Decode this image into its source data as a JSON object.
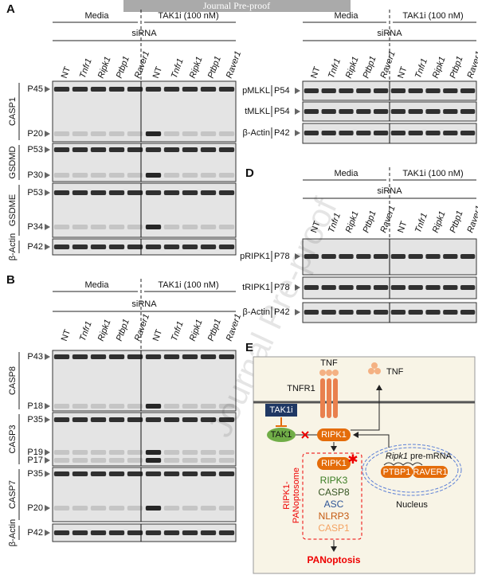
{
  "banner": "Journal Pre-proof",
  "watermark": "Journal Pre-proof",
  "lanes": [
    "NT",
    "Tnfr1",
    "Ripk1",
    "Ptbp1",
    "Raver1"
  ],
  "conditions": [
    "Media",
    "TAK1i (100 nM)"
  ],
  "treatment": "siRNA",
  "panels": [
    {
      "letter": "A",
      "blots": [
        {
          "protein": "CASP1",
          "markers": [
            "P45",
            "P20"
          ]
        },
        {
          "protein": "GSDMD",
          "markers": [
            "P53",
            "P30"
          ]
        },
        {
          "protein": "GSDME",
          "markers": [
            "P53",
            "P34"
          ]
        },
        {
          "protein": "β-Actin",
          "markers": [
            "P42"
          ]
        }
      ]
    },
    {
      "letter": "B",
      "blots": [
        {
          "protein": "CASP8",
          "markers": [
            "P43",
            "P18"
          ]
        },
        {
          "protein": "CASP3",
          "markers": [
            "P35",
            "P19",
            "P17"
          ]
        },
        {
          "protein": "CASP7",
          "markers": [
            "P35",
            "P20"
          ]
        },
        {
          "protein": "β-Actin",
          "markers": [
            "P42"
          ]
        }
      ]
    },
    {
      "blots": [
        {
          "protein": "pMLKL",
          "markers": [
            "P54"
          ]
        },
        {
          "protein": "tMLKL",
          "markers": [
            "P54"
          ]
        },
        {
          "protein": "β-Actin",
          "markers": [
            "P42"
          ]
        }
      ]
    },
    {
      "letter": "D",
      "blots": [
        {
          "protein": "pRIPK1",
          "markers": [
            "P78"
          ]
        },
        {
          "protein": "tRIPK1",
          "markers": [
            "P78"
          ]
        },
        {
          "protein": "β-Actin",
          "markers": [
            "P42"
          ]
        }
      ]
    }
  ],
  "diagram": {
    "letter": "E",
    "tnf": "TNF",
    "released_tnf": "TNF",
    "receptor": "TNFR1",
    "inhibitor": "TAK1i",
    "tak1": "TAK1",
    "ripk1": "RIPK1",
    "complex_core": "RIPK1",
    "complex": [
      "RIPK3",
      "CASP8",
      "ASC",
      "NLRP3",
      "CASP1"
    ],
    "complex_name": [
      "RIPK1-",
      "PANoptosome"
    ],
    "outcome": "PANoptosis",
    "mrna_gene": "Ripk1",
    "mrna_label": "pre-mRNA",
    "ptbp1": "PTBP1",
    "raver1": "RAVER1",
    "nucleus": "Nucleus"
  }
}
